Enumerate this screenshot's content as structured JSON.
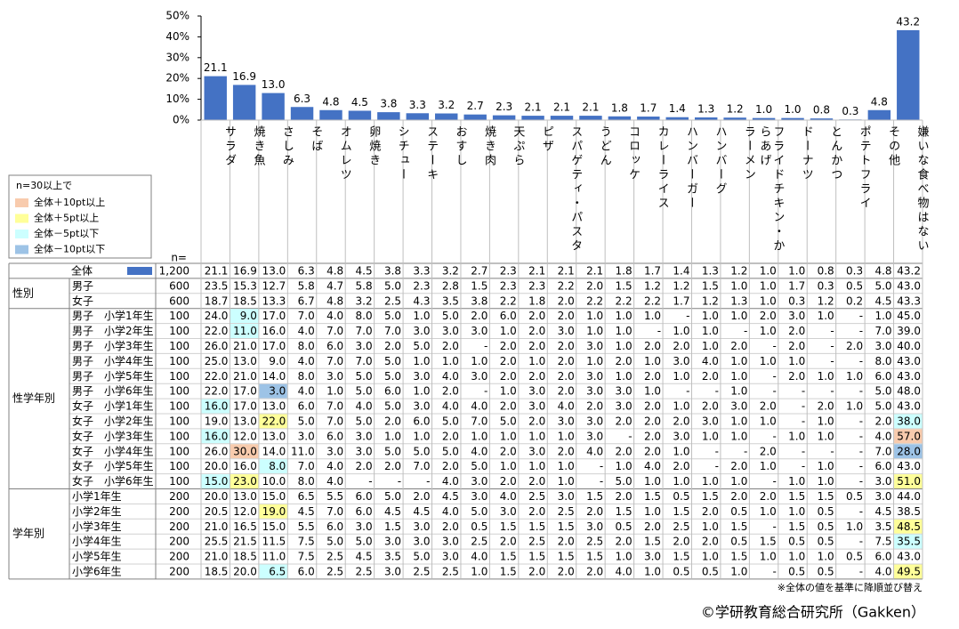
{
  "chart_data": {
    "type": "bar",
    "categories": [
      "サラダ",
      "焼き魚",
      "さしみ",
      "そば",
      "オムレツ",
      "卵焼き",
      "シチュー",
      "ステーキ",
      "おすし",
      "焼き肉",
      "天ぷら",
      "ピザ",
      "スパゲティ・パスタ",
      "うどん",
      "コロッケ",
      "カレーライス",
      "ハンバーガー",
      "ハンバーグ",
      "ラーメン",
      "フライドチキン・からあげ",
      "ドーナツ",
      "とんかつ",
      "ポテトフライ",
      "その他",
      "嫌いな食べ物はない"
    ],
    "values": [
      21.1,
      16.9,
      13,
      6.3,
      4.8,
      4.5,
      3.8,
      3.3,
      3.2,
      2.7,
      2.3,
      2.1,
      2.1,
      2.1,
      1.8,
      1.7,
      1.4,
      1.3,
      1.2,
      1,
      1,
      0.8,
      0.3,
      4.8,
      43.2
    ],
    "value_labels": [
      "21.1",
      "16.9",
      "13.0",
      "6.3",
      "4.8",
      "4.5",
      "3.8",
      "3.3",
      "3.2",
      "2.7",
      "2.3",
      "2.1",
      "2.1",
      "2.1",
      "1.8",
      "1.7",
      "1.4",
      "1.3",
      "1.2",
      "1.0",
      "1.0",
      "0.8",
      "0.3",
      "4.8",
      "43.2"
    ],
    "color": "#4472c4",
    "ylim": [
      0,
      50
    ],
    "yticks": [
      {
        "value": 0,
        "label": "0%"
      },
      {
        "value": 10,
        "label": "10%"
      },
      {
        "value": 20,
        "label": "20%"
      },
      {
        "value": 30,
        "label": "30%"
      },
      {
        "value": 40,
        "label": "40%"
      },
      {
        "value": 50,
        "label": "50%"
      }
    ],
    "grid": false
  },
  "legend": {
    "title": "n=30以上で",
    "items": [
      {
        "label": "全体＋10pt以上",
        "color": "#f8cbad"
      },
      {
        "label": "全体＋5pt以上",
        "color": "#ffff99"
      },
      {
        "label": "全体－5pt以下",
        "color": "#ccffff"
      },
      {
        "label": "全体－10pt以下",
        "color": "#9dc3e6"
      }
    ]
  },
  "table": {
    "n_header": "n=",
    "total": {
      "label": "全体",
      "n": "1,200"
    },
    "groups": [
      {
        "label": "性別",
        "rows": [
          {
            "label": "男子",
            "n": "600",
            "values": [
              "23.5",
              "15.3",
              "12.7",
              "5.8",
              "4.7",
              "5.8",
              "5.0",
              "2.3",
              "2.8",
              "1.5",
              "2.3",
              "2.3",
              "2.2",
              "2.0",
              "1.5",
              "1.2",
              "1.2",
              "1.5",
              "1.0",
              "1.0",
              "1.7",
              "0.3",
              "0.5",
              "5.0",
              "43.0"
            ]
          },
          {
            "label": "女子",
            "n": "600",
            "values": [
              "18.7",
              "18.5",
              "13.3",
              "6.7",
              "4.8",
              "3.2",
              "2.5",
              "4.3",
              "3.5",
              "3.8",
              "2.2",
              "1.8",
              "2.0",
              "2.2",
              "2.2",
              "2.2",
              "1.7",
              "1.2",
              "1.3",
              "1.0",
              "0.3",
              "1.2",
              "0.2",
              "4.5",
              "43.3"
            ]
          }
        ]
      },
      {
        "label": "性学年別",
        "rows": [
          {
            "label": "男子　小学1年生",
            "n": "100",
            "values": [
              "24.0",
              "9.0",
              "17.0",
              "7.0",
              "4.0",
              "8.0",
              "5.0",
              "1.0",
              "5.0",
              "2.0",
              "6.0",
              "2.0",
              "2.0",
              "1.0",
              "1.0",
              "1.0",
              "-",
              "1.0",
              "1.0",
              "2.0",
              "3.0",
              "1.0",
              "-",
              "1.0",
              "45.0"
            ],
            "colors": {
              "1": "#ccffff"
            }
          },
          {
            "label": "男子　小学2年生",
            "n": "100",
            "values": [
              "22.0",
              "11.0",
              "16.0",
              "4.0",
              "7.0",
              "7.0",
              "7.0",
              "3.0",
              "3.0",
              "3.0",
              "1.0",
              "2.0",
              "3.0",
              "1.0",
              "1.0",
              "-",
              "1.0",
              "1.0",
              "-",
              "1.0",
              "2.0",
              "-",
              "-",
              "7.0",
              "39.0"
            ],
            "colors": {
              "1": "#ccffff"
            }
          },
          {
            "label": "男子　小学3年生",
            "n": "100",
            "values": [
              "26.0",
              "21.0",
              "17.0",
              "8.0",
              "6.0",
              "3.0",
              "2.0",
              "5.0",
              "2.0",
              "-",
              "2.0",
              "2.0",
              "2.0",
              "3.0",
              "1.0",
              "2.0",
              "2.0",
              "1.0",
              "2.0",
              "-",
              "2.0",
              "-",
              "2.0",
              "3.0",
              "40.0"
            ]
          },
          {
            "label": "男子　小学4年生",
            "n": "100",
            "values": [
              "25.0",
              "13.0",
              "9.0",
              "4.0",
              "7.0",
              "7.0",
              "5.0",
              "1.0",
              "1.0",
              "1.0",
              "2.0",
              "1.0",
              "2.0",
              "1.0",
              "2.0",
              "1.0",
              "3.0",
              "4.0",
              "1.0",
              "1.0",
              "1.0",
              "-",
              "-",
              "8.0",
              "43.0"
            ]
          },
          {
            "label": "男子　小学5年生",
            "n": "100",
            "values": [
              "22.0",
              "21.0",
              "14.0",
              "8.0",
              "3.0",
              "5.0",
              "5.0",
              "3.0",
              "4.0",
              "3.0",
              "2.0",
              "2.0",
              "2.0",
              "3.0",
              "1.0",
              "2.0",
              "1.0",
              "2.0",
              "1.0",
              "-",
              "2.0",
              "1.0",
              "1.0",
              "6.0",
              "43.0"
            ]
          },
          {
            "label": "男子　小学6年生",
            "n": "100",
            "values": [
              "22.0",
              "17.0",
              "3.0",
              "4.0",
              "1.0",
              "5.0",
              "6.0",
              "1.0",
              "2.0",
              "-",
              "1.0",
              "3.0",
              "2.0",
              "3.0",
              "3.0",
              "1.0",
              "-",
              "-",
              "1.0",
              "-",
              "-",
              "-",
              "-",
              "5.0",
              "48.0"
            ],
            "colors": {
              "2": "#9dc3e6"
            }
          },
          {
            "label": "女子　小学1年生",
            "n": "100",
            "values": [
              "16.0",
              "17.0",
              "13.0",
              "6.0",
              "7.0",
              "4.0",
              "5.0",
              "3.0",
              "4.0",
              "4.0",
              "2.0",
              "3.0",
              "4.0",
              "2.0",
              "3.0",
              "2.0",
              "1.0",
              "2.0",
              "3.0",
              "2.0",
              "-",
              "2.0",
              "1.0",
              "5.0",
              "43.0"
            ],
            "colors": {
              "0": "#ccffff"
            }
          },
          {
            "label": "女子　小学2年生",
            "n": "100",
            "values": [
              "19.0",
              "13.0",
              "22.0",
              "5.0",
              "7.0",
              "5.0",
              "2.0",
              "6.0",
              "5.0",
              "7.0",
              "5.0",
              "2.0",
              "3.0",
              "3.0",
              "2.0",
              "2.0",
              "2.0",
              "3.0",
              "1.0",
              "1.0",
              "-",
              "1.0",
              "-",
              "2.0",
              "38.0"
            ],
            "colors": {
              "2": "#ffff99",
              "24": "#ccffff"
            }
          },
          {
            "label": "女子　小学3年生",
            "n": "100",
            "values": [
              "16.0",
              "12.0",
              "13.0",
              "3.0",
              "6.0",
              "3.0",
              "1.0",
              "1.0",
              "2.0",
              "1.0",
              "1.0",
              "1.0",
              "1.0",
              "3.0",
              "-",
              "2.0",
              "3.0",
              "1.0",
              "1.0",
              "-",
              "1.0",
              "1.0",
              "-",
              "4.0",
              "57.0"
            ],
            "colors": {
              "0": "#ccffff",
              "24": "#f8cbad"
            }
          },
          {
            "label": "女子　小学4年生",
            "n": "100",
            "values": [
              "26.0",
              "30.0",
              "14.0",
              "11.0",
              "3.0",
              "3.0",
              "5.0",
              "5.0",
              "5.0",
              "4.0",
              "2.0",
              "3.0",
              "2.0",
              "4.0",
              "2.0",
              "2.0",
              "1.0",
              "-",
              "-",
              "2.0",
              "-",
              "-",
              "-",
              "7.0",
              "28.0"
            ],
            "colors": {
              "1": "#f8cbad",
              "24": "#9dc3e6"
            }
          },
          {
            "label": "女子　小学5年生",
            "n": "100",
            "values": [
              "20.0",
              "16.0",
              "8.0",
              "7.0",
              "4.0",
              "2.0",
              "2.0",
              "7.0",
              "2.0",
              "5.0",
              "1.0",
              "1.0",
              "1.0",
              "-",
              "1.0",
              "4.0",
              "2.0",
              "-",
              "2.0",
              "1.0",
              "-",
              "1.0",
              "-",
              "6.0",
              "43.0"
            ],
            "colors": {
              "2": "#ccffff"
            }
          },
          {
            "label": "女子　小学6年生",
            "n": "100",
            "values": [
              "15.0",
              "23.0",
              "10.0",
              "8.0",
              "4.0",
              "-",
              "-",
              "-",
              "4.0",
              "3.0",
              "2.0",
              "2.0",
              "1.0",
              "-",
              "5.0",
              "1.0",
              "1.0",
              "1.0",
              "1.0",
              "-",
              "1.0",
              "1.0",
              "-",
              "3.0",
              "51.0"
            ],
            "colors": {
              "0": "#ccffff",
              "1": "#ffff99",
              "24": "#ffff99"
            }
          }
        ]
      },
      {
        "label": "学年別",
        "rows": [
          {
            "label": "小学1年生",
            "n": "200",
            "values": [
              "20.0",
              "13.0",
              "15.0",
              "6.5",
              "5.5",
              "6.0",
              "5.0",
              "2.0",
              "4.5",
              "3.0",
              "4.0",
              "2.5",
              "3.0",
              "1.5",
              "2.0",
              "1.5",
              "0.5",
              "1.5",
              "2.0",
              "2.0",
              "1.5",
              "1.5",
              "0.5",
              "3.0",
              "44.0"
            ]
          },
          {
            "label": "小学2年生",
            "n": "200",
            "values": [
              "20.5",
              "12.0",
              "19.0",
              "4.5",
              "7.0",
              "6.0",
              "4.5",
              "4.5",
              "4.0",
              "5.0",
              "3.0",
              "2.0",
              "2.5",
              "2.0",
              "1.5",
              "1.0",
              "1.5",
              "2.0",
              "0.5",
              "1.0",
              "1.0",
              "0.5",
              "-",
              "4.5",
              "38.5"
            ],
            "colors": {
              "2": "#ffff99"
            }
          },
          {
            "label": "小学3年生",
            "n": "200",
            "values": [
              "21.0",
              "16.5",
              "15.0",
              "5.5",
              "6.0",
              "3.0",
              "1.5",
              "3.0",
              "2.0",
              "0.5",
              "1.5",
              "1.5",
              "1.5",
              "3.0",
              "0.5",
              "2.0",
              "2.5",
              "1.0",
              "1.5",
              "-",
              "1.5",
              "0.5",
              "1.0",
              "3.5",
              "48.5"
            ],
            "colors": {
              "24": "#ffff99"
            }
          },
          {
            "label": "小学4年生",
            "n": "200",
            "values": [
              "25.5",
              "21.5",
              "11.5",
              "7.5",
              "5.0",
              "5.0",
              "3.0",
              "3.0",
              "3.0",
              "2.5",
              "2.0",
              "2.5",
              "2.0",
              "2.5",
              "2.0",
              "1.5",
              "2.0",
              "2.0",
              "0.5",
              "1.5",
              "0.5",
              "0.5",
              "-",
              "7.5",
              "35.5"
            ],
            "colors": {
              "24": "#ccffff"
            }
          },
          {
            "label": "小学5年生",
            "n": "200",
            "values": [
              "21.0",
              "18.5",
              "11.0",
              "7.5",
              "2.5",
              "4.5",
              "3.5",
              "5.0",
              "3.0",
              "4.0",
              "1.5",
              "1.5",
              "1.5",
              "1.5",
              "1.0",
              "3.0",
              "1.5",
              "1.0",
              "1.5",
              "1.0",
              "1.0",
              "1.0",
              "0.5",
              "6.0",
              "43.0"
            ]
          },
          {
            "label": "小学6年生",
            "n": "200",
            "values": [
              "18.5",
              "20.0",
              "6.5",
              "6.0",
              "2.5",
              "2.5",
              "3.0",
              "2.5",
              "2.5",
              "1.0",
              "1.5",
              "2.0",
              "2.0",
              "2.0",
              "4.0",
              "1.0",
              "0.5",
              "0.5",
              "1.0",
              "-",
              "0.5",
              "0.5",
              "-",
              "4.0",
              "49.5"
            ],
            "colors": {
              "2": "#ccffff",
              "24": "#ffff99"
            }
          }
        ]
      }
    ]
  },
  "footnote": "※全体の値を基準に降順並び替え",
  "copyright": "©学研教育総合研究所（Gakken）"
}
